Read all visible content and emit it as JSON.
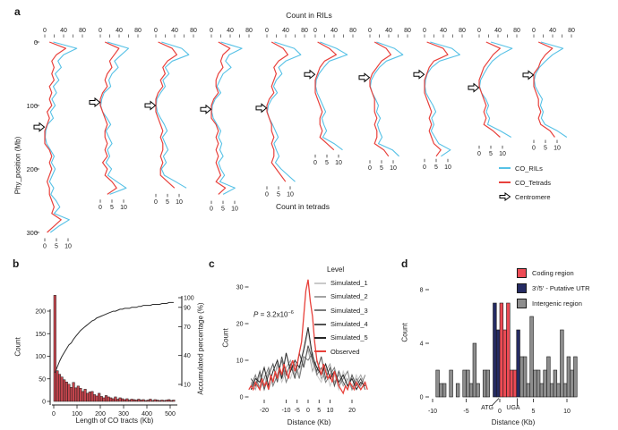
{
  "figure": {
    "panel_labels": {
      "a": "a",
      "b": "b",
      "c": "c",
      "d": "d"
    }
  },
  "chart_data": [
    {
      "panel": "a",
      "type": "line",
      "orientation": "vertical-small-multiples",
      "title": "Count in RILs",
      "xlabel_bottom": "Count in tetrads",
      "ylabel": "Phy_position (Mb)",
      "y_ticks": [
        0,
        100,
        200,
        300
      ],
      "count_axis_top": {
        "minor_ticks": [
          0,
          20,
          40,
          60,
          80
        ],
        "tick_labels": [
          0,
          40,
          80
        ],
        "range": [
          0,
          85
        ]
      },
      "count_axis_bottom": {
        "tick_labels": [
          0,
          5,
          10
        ],
        "range": [
          0,
          12.5
        ]
      },
      "series_colors": {
        "co_rils": "#56c1e6",
        "co_tetrads": "#e8413c"
      },
      "legend": [
        {
          "label": "CO_RILs",
          "swatch": "line",
          "color": "#56c1e6"
        },
        {
          "label": "CO_Tetrads",
          "swatch": "line",
          "color": "#e8413c"
        },
        {
          "label": "Centromere",
          "swatch": "arrow",
          "color": "#000000"
        }
      ],
      "chromosomes": [
        {
          "length_mb": 305,
          "centromere_mb": 134,
          "step_mb": 10,
          "co_rils": [
            18,
            68,
            40,
            28,
            35,
            22,
            30,
            18,
            25,
            15,
            22,
            12,
            18,
            6,
            2,
            1,
            4,
            12,
            20,
            14,
            22,
            16,
            10,
            19,
            13,
            24,
            32,
            20,
            52,
            30,
            12
          ],
          "co_tetrads": [
            2,
            9,
            5,
            3,
            4,
            3,
            4,
            2,
            3,
            2,
            3,
            1,
            2,
            1,
            0,
            0,
            0,
            2,
            3,
            2,
            3,
            2,
            1,
            2,
            2,
            3,
            4,
            3,
            7,
            4,
            1
          ]
        },
        {
          "length_mb": 244,
          "centromere_mb": 95,
          "step_mb": 10,
          "co_rils": [
            15,
            60,
            45,
            30,
            38,
            25,
            18,
            22,
            8,
            3,
            1,
            5,
            14,
            22,
            12,
            18,
            25,
            15,
            20,
            12,
            24,
            16,
            35,
            55,
            20
          ],
          "co_tetrads": [
            2,
            8,
            6,
            4,
            5,
            3,
            2,
            3,
            1,
            0,
            0,
            1,
            2,
            3,
            2,
            2,
            3,
            2,
            3,
            1,
            3,
            2,
            5,
            7,
            3
          ]
        },
        {
          "length_mb": 235,
          "centromere_mb": 100,
          "step_mb": 10,
          "co_rils": [
            12,
            55,
            70,
            35,
            20,
            28,
            15,
            20,
            10,
            2,
            1,
            3,
            10,
            18,
            24,
            14,
            20,
            26,
            16,
            22,
            12,
            18,
            42,
            65
          ],
          "co_tetrads": [
            1,
            7,
            9,
            5,
            3,
            4,
            2,
            3,
            1,
            0,
            0,
            0,
            1,
            2,
            3,
            2,
            3,
            3,
            2,
            3,
            2,
            2,
            5,
            8
          ]
        },
        {
          "length_mb": 246,
          "centromere_mb": 106,
          "step_mb": 10,
          "co_rils": [
            20,
            65,
            38,
            30,
            42,
            25,
            18,
            12,
            20,
            8,
            2,
            1,
            4,
            12,
            20,
            15,
            22,
            18,
            25,
            15,
            20,
            28,
            18,
            50,
            25
          ],
          "co_tetrads": [
            3,
            8,
            5,
            4,
            5,
            3,
            2,
            2,
            3,
            1,
            0,
            0,
            0,
            2,
            3,
            2,
            3,
            2,
            3,
            2,
            3,
            4,
            2,
            6,
            3
          ]
        },
        {
          "length_mb": 223,
          "centromere_mb": 104,
          "step_mb": 10,
          "co_rils": [
            16,
            58,
            72,
            40,
            25,
            32,
            20,
            14,
            22,
            10,
            3,
            1,
            5,
            12,
            18,
            24,
            15,
            20,
            26,
            18,
            30,
            45,
            60
          ],
          "co_tetrads": [
            2,
            7,
            9,
            5,
            3,
            4,
            3,
            2,
            3,
            1,
            0,
            0,
            1,
            2,
            2,
            3,
            2,
            3,
            3,
            2,
            4,
            6,
            8
          ]
        },
        {
          "length_mb": 173,
          "centromere_mb": 51,
          "step_mb": 10,
          "co_rils": [
            10,
            45,
            68,
            30,
            18,
            8,
            2,
            1,
            4,
            10,
            16,
            22,
            14,
            18,
            24,
            16,
            40,
            58
          ],
          "co_tetrads": [
            1,
            6,
            9,
            4,
            2,
            1,
            0,
            0,
            0,
            1,
            2,
            3,
            2,
            2,
            3,
            2,
            5,
            8
          ]
        },
        {
          "length_mb": 182,
          "centromere_mb": 56,
          "step_mb": 10,
          "co_rils": [
            14,
            52,
            70,
            35,
            20,
            10,
            3,
            1,
            5,
            12,
            18,
            14,
            22,
            16,
            20,
            26,
            18,
            48,
            62
          ],
          "co_tetrads": [
            2,
            7,
            9,
            5,
            3,
            1,
            0,
            0,
            1,
            2,
            2,
            2,
            3,
            2,
            3,
            3,
            2,
            6,
            8
          ]
        },
        {
          "length_mb": 180,
          "centromere_mb": 51,
          "step_mb": 10,
          "co_rils": [
            12,
            58,
            75,
            32,
            15,
            6,
            2,
            1,
            3,
            10,
            18,
            24,
            15,
            20,
            14,
            22,
            30,
            55,
            35
          ],
          "co_tetrads": [
            1,
            8,
            10,
            4,
            2,
            1,
            0,
            0,
            0,
            1,
            2,
            3,
            2,
            3,
            2,
            3,
            4,
            7,
            5
          ]
        },
        {
          "length_mb": 159,
          "centromere_mb": 72,
          "step_mb": 10,
          "co_rils": [
            25,
            70,
            45,
            28,
            18,
            10,
            3,
            1,
            5,
            14,
            20,
            15,
            22,
            18,
            45,
            68
          ],
          "co_tetrads": [
            3,
            9,
            6,
            4,
            2,
            1,
            0,
            0,
            1,
            2,
            3,
            2,
            3,
            2,
            6,
            9
          ]
        },
        {
          "length_mb": 150,
          "centromere_mb": 52,
          "step_mb": 10,
          "co_rils": [
            15,
            62,
            40,
            25,
            12,
            4,
            1,
            3,
            10,
            18,
            14,
            20,
            16,
            24,
            50,
            70
          ],
          "co_tetrads": [
            2,
            8,
            5,
            3,
            2,
            0,
            0,
            0,
            1,
            2,
            2,
            3,
            2,
            3,
            7,
            9
          ]
        }
      ]
    },
    {
      "panel": "b",
      "type": "bar",
      "xlabel": "Length of CO tracts (Kb)",
      "ylabel_left": "Count",
      "ylabel_right": "Accumulated percentage (%)",
      "x_ticks": [
        0,
        100,
        200,
        300,
        400,
        500
      ],
      "y_ticks_left": [
        0,
        50,
        100,
        150,
        200
      ],
      "y_ticks_right": [
        10,
        40,
        70,
        90,
        100
      ],
      "bin_width_kb": 10,
      "bar_color": "#c7464e",
      "line_color": "#2b2b2b",
      "counts": [
        235,
        68,
        60,
        54,
        48,
        43,
        38,
        31,
        42,
        30,
        34,
        29,
        22,
        27,
        18,
        21,
        22,
        15,
        12,
        18,
        11,
        8,
        13,
        10,
        8,
        6,
        10,
        5,
        8,
        6,
        4,
        6,
        3,
        5,
        4,
        3,
        5,
        3,
        4,
        2,
        3,
        5,
        2,
        4,
        3,
        2,
        3,
        2,
        3,
        4,
        2,
        3
      ],
      "accumulated_percentage": [
        22,
        28,
        34,
        39,
        43,
        47,
        51,
        53,
        57,
        60,
        63,
        66,
        68,
        70,
        72,
        74,
        76,
        77,
        79,
        80,
        81,
        82,
        83,
        84,
        85,
        86,
        86,
        87,
        88,
        88,
        89,
        89,
        89,
        90,
        90,
        90,
        91,
        91,
        92,
        92,
        92,
        92,
        93,
        93,
        93,
        93,
        94,
        94,
        94,
        95,
        95,
        95
      ]
    },
    {
      "panel": "c",
      "type": "line",
      "xlabel": "Distance (Kb)",
      "ylabel": "Count",
      "x_ticks": [
        -20,
        -10,
        -5,
        0,
        5,
        10,
        20
      ],
      "y_ticks": [
        0,
        10,
        20,
        30
      ],
      "annotation": {
        "symbol": "P",
        "body": " = 3.2x10",
        "exp": "−6"
      },
      "legend_title": "Level",
      "series": [
        {
          "name": "Simulated_1",
          "color": "#c9c9c9",
          "x_start": -26,
          "x_step": 2,
          "values": [
            2,
            4,
            3,
            6,
            2,
            5,
            8,
            4,
            7,
            5,
            9,
            6,
            12,
            18,
            9,
            6,
            4,
            8,
            3,
            6,
            2,
            7,
            4,
            3,
            6,
            2,
            4
          ]
        },
        {
          "name": "Simulated_2",
          "color": "#a3a3a3",
          "x_start": -26,
          "x_step": 2,
          "values": [
            4,
            2,
            6,
            3,
            7,
            4,
            9,
            5,
            8,
            10,
            6,
            8,
            9,
            13,
            7,
            10,
            5,
            7,
            9,
            4,
            6,
            3,
            5,
            2,
            4,
            6,
            3
          ]
        },
        {
          "name": "Simulated_3",
          "color": "#7a7a7a",
          "x_start": -26,
          "x_step": 2,
          "values": [
            3,
            6,
            2,
            5,
            8,
            3,
            6,
            10,
            4,
            7,
            9,
            5,
            11,
            10,
            12,
            6,
            8,
            4,
            6,
            8,
            3,
            5,
            7,
            2,
            5,
            3,
            6
          ]
        },
        {
          "name": "Simulated_4",
          "color": "#525252",
          "x_start": -26,
          "x_step": 2,
          "values": [
            5,
            3,
            7,
            2,
            6,
            9,
            4,
            11,
            6,
            9,
            5,
            12,
            8,
            14,
            10,
            7,
            11,
            5,
            8,
            3,
            7,
            4,
            2,
            6,
            3,
            5,
            2
          ]
        },
        {
          "name": "Simulated_5",
          "color": "#262626",
          "x_start": -26,
          "x_step": 2,
          "values": [
            2,
            5,
            4,
            8,
            3,
            7,
            10,
            5,
            12,
            7,
            10,
            8,
            13,
            19,
            11,
            8,
            6,
            9,
            5,
            7,
            4,
            6,
            3,
            5,
            2,
            4,
            3
          ]
        },
        {
          "name": "Observed",
          "color": "#e8403a",
          "x_start": -27,
          "x_step": 1,
          "values": [
            2,
            3,
            2,
            4,
            3,
            2,
            5,
            3,
            4,
            2,
            6,
            4,
            7,
            5,
            8,
            6,
            9,
            7,
            5,
            8,
            10,
            7,
            9,
            12,
            15,
            22,
            29,
            32,
            26,
            22,
            15,
            10,
            8,
            6,
            9,
            7,
            5,
            6,
            4,
            7,
            5,
            3,
            2,
            1,
            3,
            2,
            4,
            3,
            2,
            4,
            3,
            2,
            3,
            4,
            2
          ]
        }
      ]
    },
    {
      "panel": "d",
      "type": "bar",
      "xlabel": "Distance (Kb)",
      "ylabel": "Count",
      "x_ticks": [
        -10,
        -5,
        0,
        5,
        10
      ],
      "y_ticks": [
        0,
        4,
        8
      ],
      "bin_width_kb": 0.5,
      "gene_marks": {
        "start": "ATG",
        "stop": "UGA"
      },
      "category_colors": {
        "coding": "#ed4b55",
        "utr": "#252b63",
        "intergenic": "#8e8e8e"
      },
      "legend": [
        {
          "label": "Coding region",
          "swatch": "box",
          "color": "#ed4b55"
        },
        {
          "label": "3′/5′ - Putative UTR",
          "swatch": "box",
          "color": "#252b63"
        },
        {
          "label": "Intergenic region",
          "swatch": "box",
          "color": "#8e8e8e"
        }
      ],
      "bars": [
        [
          -9.5,
          2,
          "intergenic"
        ],
        [
          -9,
          1,
          "intergenic"
        ],
        [
          -8.5,
          1,
          "intergenic"
        ],
        [
          -7.5,
          2,
          "intergenic"
        ],
        [
          -6.5,
          1,
          "intergenic"
        ],
        [
          -5.5,
          2,
          "intergenic"
        ],
        [
          -5,
          2,
          "intergenic"
        ],
        [
          -4.5,
          1,
          "intergenic"
        ],
        [
          -4,
          4,
          "intergenic"
        ],
        [
          -3.5,
          1,
          "intergenic"
        ],
        [
          -2.5,
          2,
          "intergenic"
        ],
        [
          -2,
          2,
          "intergenic"
        ],
        [
          -1,
          7,
          "utr"
        ],
        [
          -0.5,
          5,
          "utr"
        ],
        [
          0,
          7,
          "coding"
        ],
        [
          0.5,
          5,
          "coding"
        ],
        [
          1,
          7,
          "coding"
        ],
        [
          1.5,
          2,
          "coding"
        ],
        [
          2,
          2,
          "coding"
        ],
        [
          2.5,
          5,
          "utr"
        ],
        [
          3,
          3,
          "intergenic"
        ],
        [
          3.5,
          3,
          "intergenic"
        ],
        [
          4,
          1,
          "intergenic"
        ],
        [
          4.5,
          6,
          "intergenic"
        ],
        [
          5,
          2,
          "intergenic"
        ],
        [
          5.5,
          2,
          "intergenic"
        ],
        [
          6,
          1,
          "intergenic"
        ],
        [
          6.5,
          2,
          "intergenic"
        ],
        [
          7,
          3,
          "intergenic"
        ],
        [
          7.5,
          1,
          "intergenic"
        ],
        [
          8,
          2,
          "intergenic"
        ],
        [
          8.5,
          1,
          "intergenic"
        ],
        [
          9,
          5,
          "intergenic"
        ],
        [
          9.5,
          1,
          "intergenic"
        ],
        [
          10,
          3,
          "intergenic"
        ],
        [
          10.5,
          2,
          "intergenic"
        ],
        [
          11,
          3,
          "intergenic"
        ]
      ]
    }
  ]
}
